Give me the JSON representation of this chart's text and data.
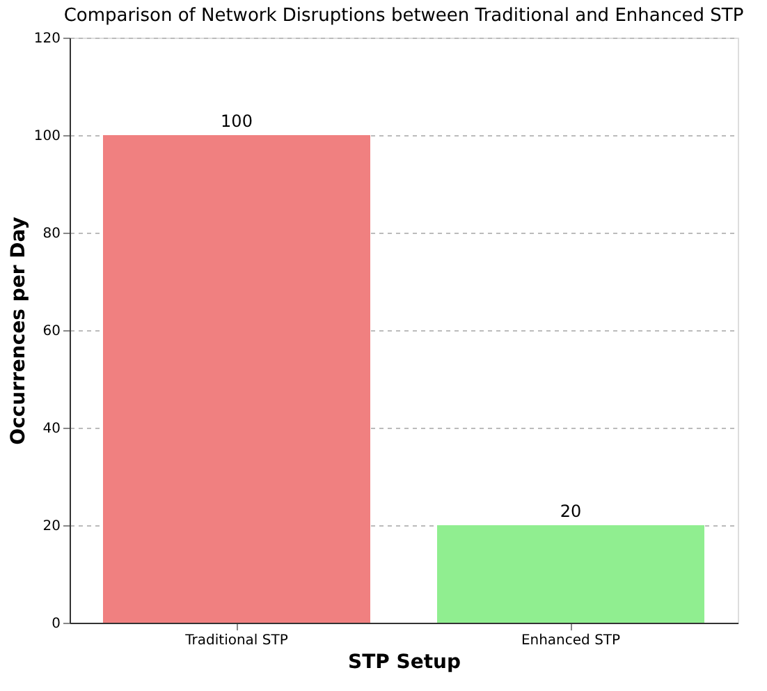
{
  "chart_data": {
    "type": "bar",
    "title": "Comparison of Network Disruptions between Traditional and Enhanced STP",
    "xlabel": "STP Setup",
    "ylabel": "Occurrences per Day",
    "categories": [
      "Traditional STP",
      "Enhanced STP"
    ],
    "values": [
      100,
      20
    ],
    "colors": [
      "#f08080",
      "#90ee90"
    ],
    "ylim": [
      0,
      120
    ],
    "yticks": [
      0,
      20,
      40,
      60,
      80,
      100,
      120
    ],
    "grid": "y",
    "data_labels": true,
    "legend": false
  }
}
